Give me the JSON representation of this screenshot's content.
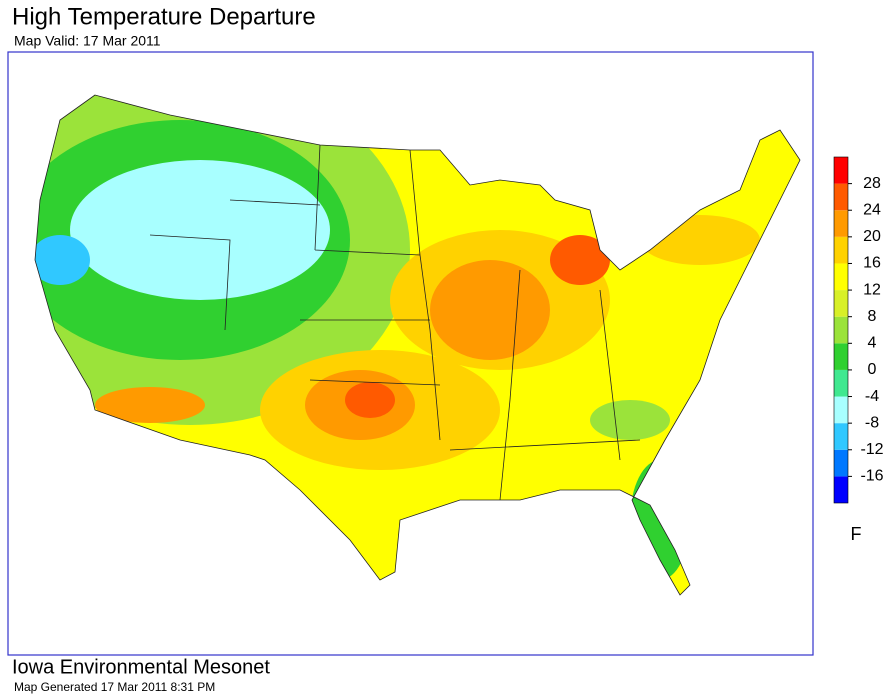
{
  "header": {
    "title": "High Temperature Departure",
    "subtitle": "Map Valid:  17 Mar 2011"
  },
  "colorbar": {
    "ylim": [
      -20,
      32
    ],
    "ticks": [
      28,
      24,
      20,
      16,
      12,
      8,
      4,
      0,
      -4,
      -8,
      -12,
      -16
    ],
    "unit": "F",
    "colors": [
      "#0000ff",
      "#0078ff",
      "#30c8ff",
      "#a8ffff",
      "#40e890",
      "#30d030",
      "#9be33a",
      "#d8f028",
      "#ffff00",
      "#ffd200",
      "#ff9a00",
      "#ff5a00",
      "#ff0000"
    ]
  },
  "footer": {
    "source": "Iowa Environmental Mesonet",
    "generated": "Map Generated 17 Mar 2011 8:31 PM"
  }
}
